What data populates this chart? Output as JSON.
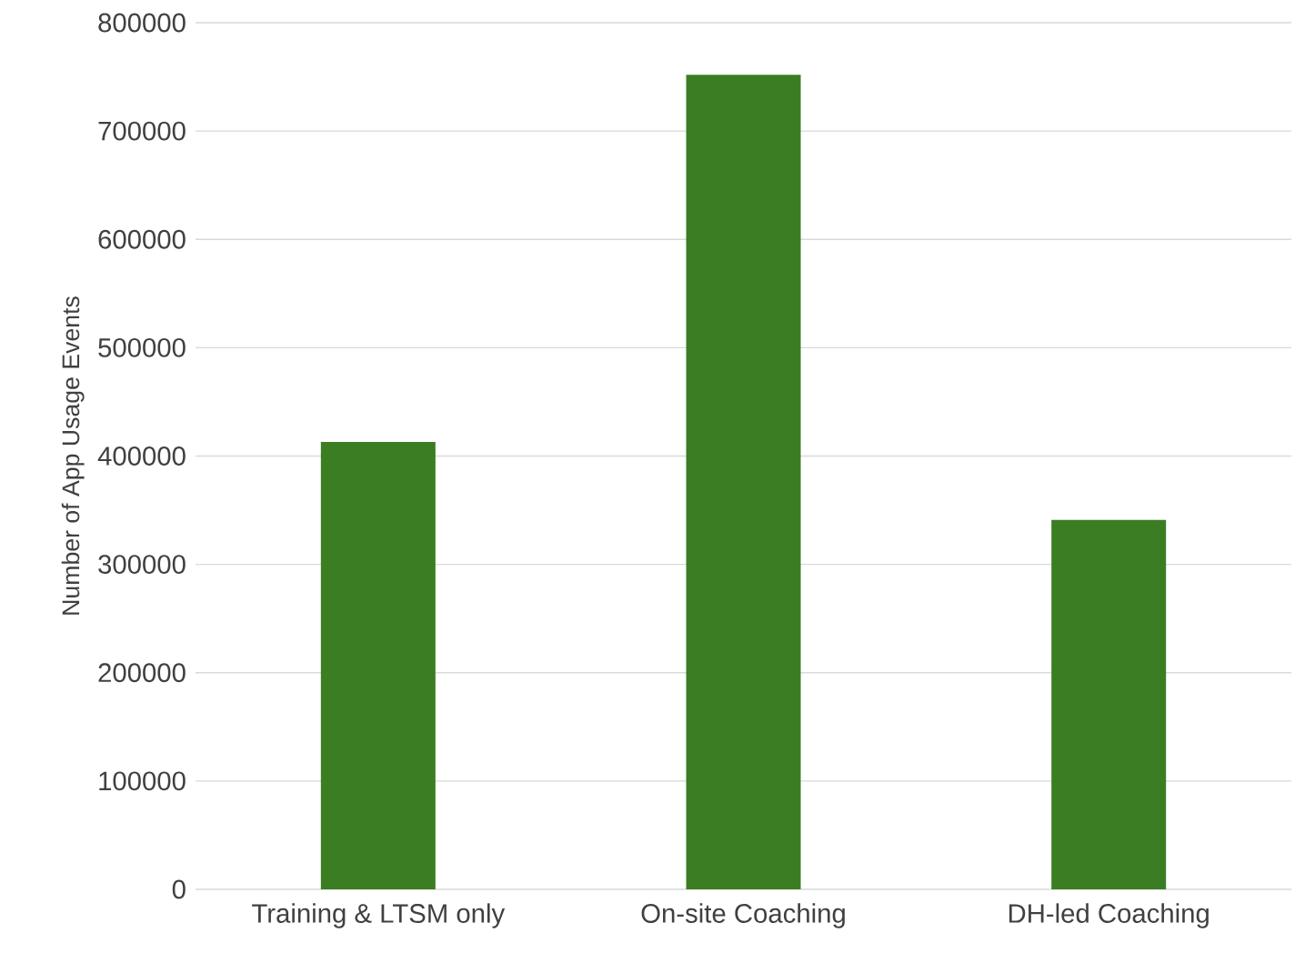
{
  "chart_data": {
    "type": "bar",
    "ylabel": "Number of App Usage Events",
    "categories": [
      "Training & LTSM only",
      "On-site Coaching",
      "DH-led Coaching"
    ],
    "values": [
      413000,
      752000,
      341000
    ],
    "color": "#3b7d23",
    "ylim": [
      0,
      800000
    ],
    "yticks": [
      0,
      100000,
      200000,
      300000,
      400000,
      500000,
      600000,
      700000,
      800000
    ],
    "grid": "y"
  }
}
